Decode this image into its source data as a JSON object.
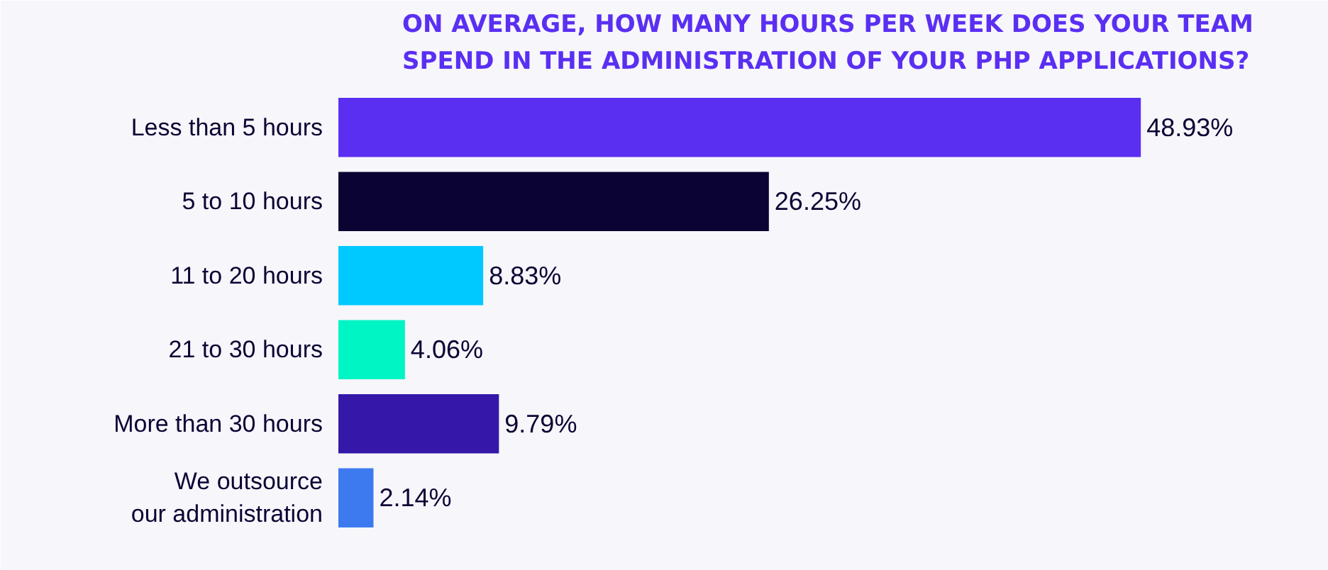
{
  "chart_data": {
    "type": "bar",
    "orientation": "horizontal",
    "title": "ON AVERAGE, HOW MANY HOURS PER WEEK DOES YOUR TEAM\nSPEND IN THE ADMINISTRATION OF YOUR PHP APPLICATIONS?",
    "categories": [
      "Less than 5 hours",
      "5 to 10 hours",
      "11 to 20 hours",
      "21 to 30 hours",
      "More than 30 hours",
      "We outsource\nour administration"
    ],
    "values": [
      48.93,
      26.25,
      8.83,
      4.06,
      9.79,
      2.14
    ],
    "colors": [
      "#5a2ff2",
      "#0b0433",
      "#00c9ff",
      "#00f5c4",
      "#3518a8",
      "#3d7af0"
    ],
    "value_labels": [
      "48.93%",
      "26.25%",
      "8.83%",
      "4.06%",
      "9.79%",
      "2.14%"
    ],
    "grid": false
  }
}
